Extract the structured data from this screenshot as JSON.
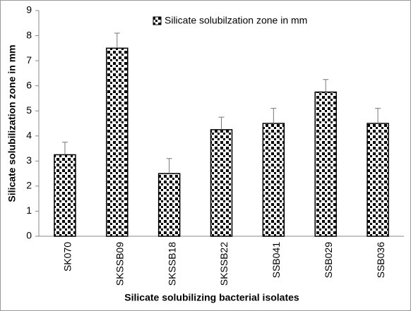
{
  "chart_data": {
    "type": "bar",
    "legend_label": "Silicate solubilzation zone in mm",
    "x_label": "Silicate solubilizing bacterial isolates",
    "y_label": "Silicate solubilization zone in mm",
    "categories": [
      "SK070",
      "SKSSB09",
      "SKSSB18",
      "SKSSB22",
      "SSB041",
      "SSB029",
      "SSB036"
    ],
    "values": [
      3.25,
      7.5,
      2.5,
      4.25,
      4.5,
      5.75,
      4.5
    ],
    "errors": [
      0.5,
      0.6,
      0.6,
      0.5,
      0.6,
      0.5,
      0.6
    ],
    "ylim": [
      0,
      9
    ],
    "yticks": [
      0,
      1,
      2,
      3,
      4,
      5,
      6,
      7,
      8,
      9
    ],
    "grid": false,
    "legend": "top"
  }
}
